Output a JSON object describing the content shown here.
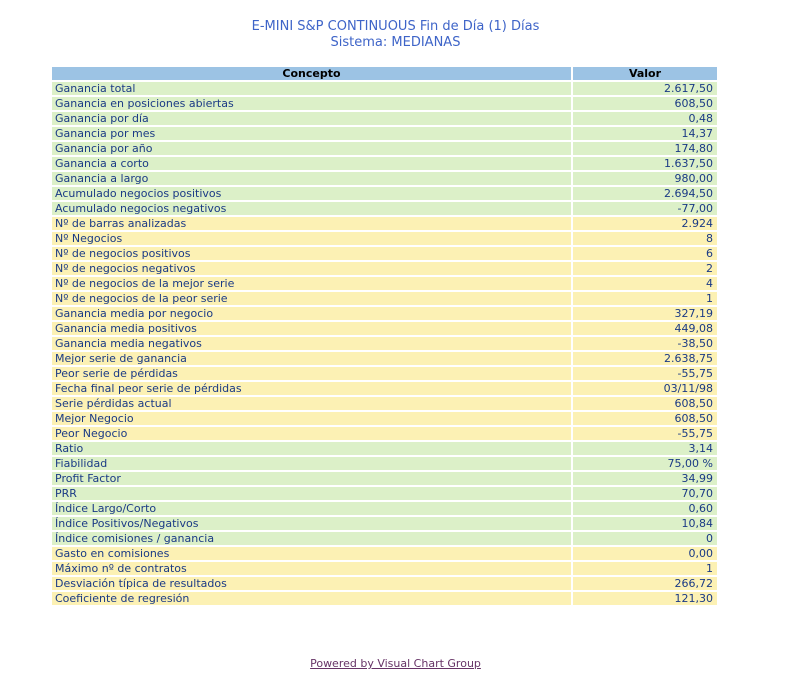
{
  "title": {
    "line1": "E-MINI S&P CONTINUOUS Fin de Día (1) Días",
    "line2": "Sistema: MEDIANAS"
  },
  "table": {
    "headers": [
      "Concepto",
      "Valor"
    ],
    "rows": [
      {
        "concepto": "Ganancia total",
        "valor": "2.617,50",
        "color": "green"
      },
      {
        "concepto": "Ganancia en posiciones abiertas",
        "valor": "608,50",
        "color": "green"
      },
      {
        "concepto": "Ganancia por día",
        "valor": "0,48",
        "color": "green"
      },
      {
        "concepto": "Ganancia por mes",
        "valor": "14,37",
        "color": "green"
      },
      {
        "concepto": "Ganancia por año",
        "valor": "174,80",
        "color": "green"
      },
      {
        "concepto": "Ganancia a corto",
        "valor": "1.637,50",
        "color": "green"
      },
      {
        "concepto": "Ganancia a largo",
        "valor": "980,00",
        "color": "green"
      },
      {
        "concepto": "Acumulado negocios positivos",
        "valor": "2.694,50",
        "color": "green"
      },
      {
        "concepto": "Acumulado negocios negativos",
        "valor": "-77,00",
        "color": "green"
      },
      {
        "concepto": "Nº de barras analizadas",
        "valor": "2.924",
        "color": "yellow"
      },
      {
        "concepto": "Nº Negocios",
        "valor": "8",
        "color": "yellow"
      },
      {
        "concepto": "Nº de negocios positivos",
        "valor": "6",
        "color": "yellow"
      },
      {
        "concepto": "Nº de negocios negativos",
        "valor": "2",
        "color": "yellow"
      },
      {
        "concepto": "Nº de negocios de la mejor serie",
        "valor": "4",
        "color": "yellow"
      },
      {
        "concepto": "Nº de negocios de la peor serie",
        "valor": "1",
        "color": "yellow"
      },
      {
        "concepto": "Ganancia media por negocio",
        "valor": "327,19",
        "color": "yellow"
      },
      {
        "concepto": "Ganancia media positivos",
        "valor": "449,08",
        "color": "yellow"
      },
      {
        "concepto": "Ganancia media negativos",
        "valor": "-38,50",
        "color": "yellow"
      },
      {
        "concepto": "Mejor serie de ganancia",
        "valor": "2.638,75",
        "color": "yellow"
      },
      {
        "concepto": "Peor serie de pérdidas",
        "valor": "-55,75",
        "color": "yellow"
      },
      {
        "concepto": "Fecha final peor serie de pérdidas",
        "valor": "03/11/98",
        "color": "yellow"
      },
      {
        "concepto": "Serie pérdidas actual",
        "valor": "608,50",
        "color": "yellow"
      },
      {
        "concepto": "Mejor Negocio",
        "valor": "608,50",
        "color": "yellow"
      },
      {
        "concepto": "Peor Negocio",
        "valor": "-55,75",
        "color": "yellow"
      },
      {
        "concepto": "Ratio",
        "valor": "3,14",
        "color": "green"
      },
      {
        "concepto": "Fiabilidad",
        "valor": "75,00 %",
        "color": "green"
      },
      {
        "concepto": "Profit Factor",
        "valor": "34,99",
        "color": "green"
      },
      {
        "concepto": "PRR",
        "valor": "70,70",
        "color": "green"
      },
      {
        "concepto": "Índice Largo/Corto",
        "valor": "0,60",
        "color": "green"
      },
      {
        "concepto": "Índice Positivos/Negativos",
        "valor": "10,84",
        "color": "green"
      },
      {
        "concepto": "Índice comisiones / ganancia",
        "valor": "0",
        "color": "green"
      },
      {
        "concepto": "Gasto en comisiones",
        "valor": "0,00",
        "color": "yellow"
      },
      {
        "concepto": "Máximo nº de contratos",
        "valor": "1",
        "color": "yellow"
      },
      {
        "concepto": "Desviación típica de resultados",
        "valor": "266,72",
        "color": "yellow"
      },
      {
        "concepto": "Coeficiente de regresión",
        "valor": "121,30",
        "color": "yellow"
      }
    ]
  },
  "footer": {
    "link": "Powered by Visual Chart Group"
  },
  "colors": {
    "title": "#3E64C8",
    "header": "#9CC3E4",
    "green": "#DCF0C8",
    "yellow": "#FCF1B4",
    "rowtext": "#1A3A85",
    "link": "#663366"
  }
}
